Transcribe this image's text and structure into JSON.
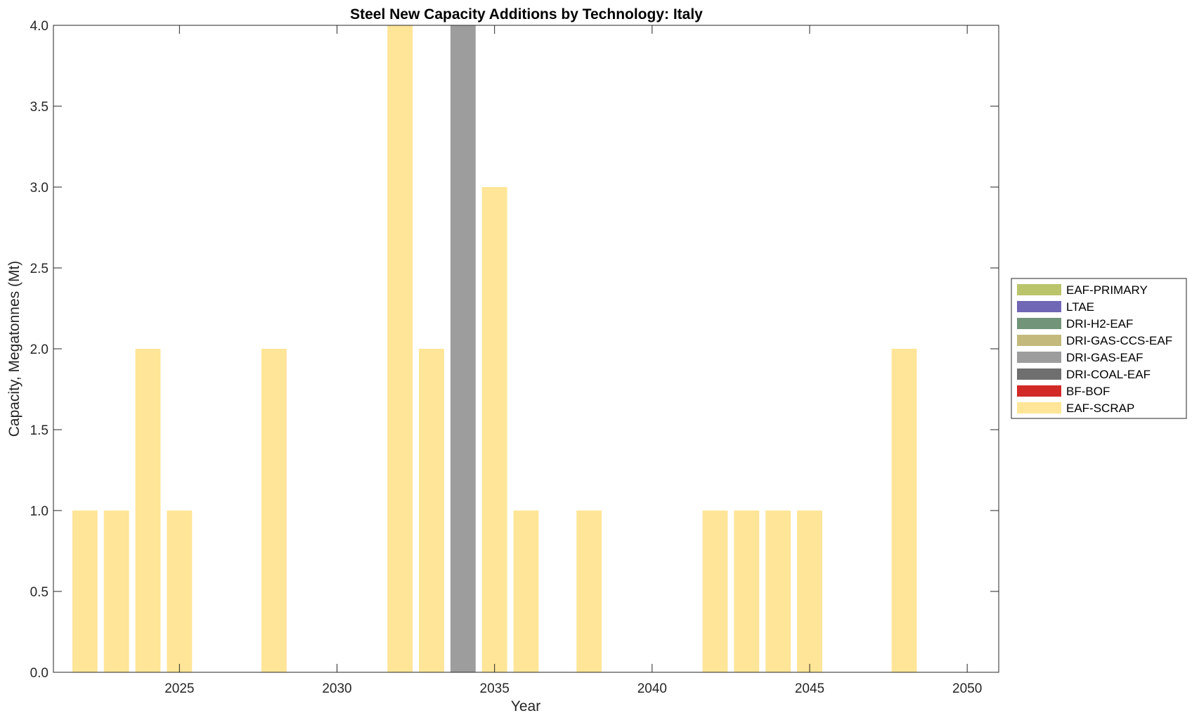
{
  "chart_data": {
    "type": "bar",
    "stacked": true,
    "title": "Steel New Capacity Additions by Technology: Italy",
    "xlabel": "Year",
    "ylabel": "Capacity, Megatonnes (Mt)",
    "xlim": [
      2021,
      2051
    ],
    "ylim": [
      0,
      4
    ],
    "xticks": [
      2025,
      2030,
      2035,
      2040,
      2045,
      2050
    ],
    "yticks": [
      "0.0",
      "0.5",
      "1.0",
      "1.5",
      "2.0",
      "2.5",
      "3.0",
      "3.5",
      "4.0"
    ],
    "grid": false,
    "legend_position": "right",
    "x": [
      2022,
      2023,
      2024,
      2025,
      2026,
      2027,
      2028,
      2029,
      2030,
      2031,
      2032,
      2033,
      2034,
      2035,
      2036,
      2037,
      2038,
      2039,
      2040,
      2041,
      2042,
      2043,
      2044,
      2045,
      2046,
      2047,
      2048,
      2049,
      2050
    ],
    "series": [
      {
        "name": "EAF-PRIMARY",
        "color": "#bac46b",
        "values": [
          0,
          0,
          0,
          0,
          0,
          0,
          0,
          0,
          0,
          0,
          0,
          0,
          0,
          0,
          0,
          0,
          0,
          0,
          0,
          0,
          0,
          0,
          0,
          0,
          0,
          0,
          0,
          0,
          0
        ]
      },
      {
        "name": "LTAE",
        "color": "#7067b5",
        "values": [
          0,
          0,
          0,
          0,
          0,
          0,
          0,
          0,
          0,
          0,
          0,
          0,
          0,
          0,
          0,
          0,
          0,
          0,
          0,
          0,
          0,
          0,
          0,
          0,
          0,
          0,
          0,
          0,
          0
        ]
      },
      {
        "name": "DRI-H2-EAF",
        "color": "#72957a",
        "values": [
          0,
          0,
          0,
          0,
          0,
          0,
          0,
          0,
          0,
          0,
          0,
          0,
          0,
          0,
          0,
          0,
          0,
          0,
          0,
          0,
          0,
          0,
          0,
          0,
          0,
          0,
          0,
          0,
          0
        ]
      },
      {
        "name": "DRI-GAS-CCS-EAF",
        "color": "#c3b97c",
        "values": [
          0,
          0,
          0,
          0,
          0,
          0,
          0,
          0,
          0,
          0,
          0,
          0,
          0,
          0,
          0,
          0,
          0,
          0,
          0,
          0,
          0,
          0,
          0,
          0,
          0,
          0,
          0,
          0,
          0
        ]
      },
      {
        "name": "DRI-GAS-EAF",
        "color": "#9d9d9d",
        "values": [
          0,
          0,
          0,
          0,
          0,
          0,
          0,
          0,
          0,
          0,
          0,
          0,
          4,
          0,
          0,
          0,
          0,
          0,
          0,
          0,
          0,
          0,
          0,
          0,
          0,
          0,
          0,
          0,
          0
        ]
      },
      {
        "name": "DRI-COAL-EAF",
        "color": "#6f6f6f",
        "values": [
          0,
          0,
          0,
          0,
          0,
          0,
          0,
          0,
          0,
          0,
          0,
          0,
          0,
          0,
          0,
          0,
          0,
          0,
          0,
          0,
          0,
          0,
          0,
          0,
          0,
          0,
          0,
          0,
          0
        ]
      },
      {
        "name": "BF-BOF",
        "color": "#d22a27",
        "values": [
          0,
          0,
          0,
          0,
          0,
          0,
          0,
          0,
          0,
          0,
          0,
          0,
          0,
          0,
          0,
          0,
          0,
          0,
          0,
          0,
          0,
          0,
          0,
          0,
          0,
          0,
          0,
          0,
          0
        ]
      },
      {
        "name": "EAF-SCRAP",
        "color": "#ffe597",
        "values": [
          1,
          1,
          2,
          1,
          0,
          0,
          2,
          0,
          0,
          0,
          4,
          2,
          0,
          3,
          1,
          0,
          1,
          0,
          0,
          0,
          1,
          1,
          1,
          1,
          0,
          0,
          2,
          0,
          0
        ]
      }
    ]
  }
}
